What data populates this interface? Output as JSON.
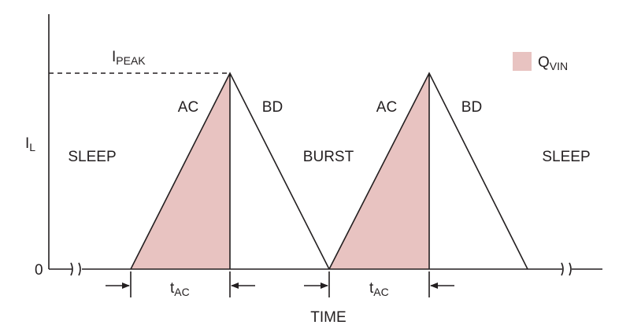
{
  "axes": {
    "y_label": {
      "main": "I",
      "sub": "L"
    },
    "x_label": "TIME",
    "origin": "0"
  },
  "peak_label": {
    "main": "I",
    "sub": "PEAK"
  },
  "legend": {
    "main": "Q",
    "sub": "VIN"
  },
  "regions": [
    "SLEEP",
    "BURST",
    "SLEEP"
  ],
  "ramps": [
    {
      "rise": "AC",
      "fall": "BD",
      "interval": {
        "main": "t",
        "sub": "AC"
      }
    },
    {
      "rise": "AC",
      "fall": "BD",
      "interval": {
        "main": "t",
        "sub": "AC"
      }
    }
  ]
}
